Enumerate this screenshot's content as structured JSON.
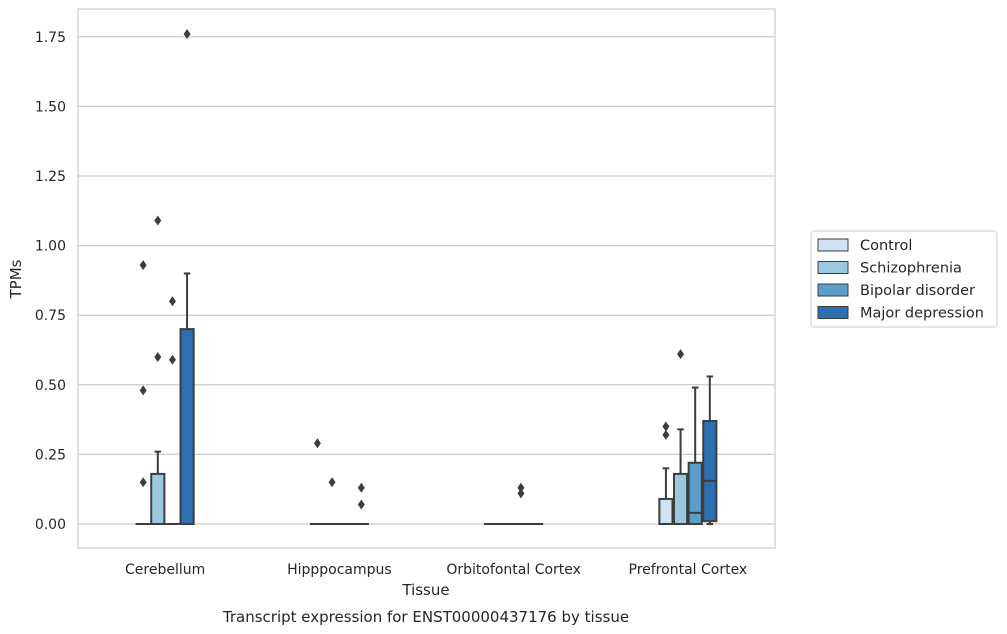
{
  "chart_data": {
    "type": "box",
    "title": "Transcript expression for ENST00000437176 by tissue",
    "xlabel": "Tissue",
    "ylabel": "TPMs",
    "ylim": [
      -0.085,
      1.85
    ],
    "yticks": [
      0.0,
      0.25,
      0.5,
      0.75,
      1.0,
      1.25,
      1.5,
      1.75
    ],
    "ytick_labels": [
      "0.00",
      "0.25",
      "0.50",
      "0.75",
      "1.00",
      "1.25",
      "1.50",
      "1.75"
    ],
    "grid": "horizontal",
    "legend_position": "right",
    "categories": [
      "Cerebellum",
      "Hipppocampus",
      "Orbitofontal Cortex",
      "Prefrontal Cortex"
    ],
    "series": [
      {
        "name": "Control",
        "color": "#d0e1f2",
        "boxes": [
          {
            "q1": 0,
            "median": 0,
            "q3": 0,
            "whisker_low": 0,
            "whisker_high": 0,
            "outliers": [
              0.93,
              0.48,
              0.15
            ]
          },
          {
            "q1": 0,
            "median": 0,
            "q3": 0,
            "whisker_low": 0,
            "whisker_high": 0,
            "outliers": [
              0.29
            ]
          },
          {
            "q1": 0,
            "median": 0,
            "q3": 0,
            "whisker_low": 0,
            "whisker_high": 0,
            "outliers": []
          },
          {
            "q1": 0,
            "median": 0,
            "q3": 0.09,
            "whisker_low": 0,
            "whisker_high": 0.2,
            "outliers": [
              0.35,
              0.32
            ]
          }
        ]
      },
      {
        "name": "Schizophrenia",
        "color": "#9ac8e0",
        "boxes": [
          {
            "q1": 0,
            "median": 0,
            "q3": 0.18,
            "whisker_low": 0,
            "whisker_high": 0.26,
            "outliers": [
              1.09,
              0.6
            ]
          },
          {
            "q1": 0,
            "median": 0,
            "q3": 0,
            "whisker_low": 0,
            "whisker_high": 0,
            "outliers": [
              0.15
            ]
          },
          {
            "q1": 0,
            "median": 0,
            "q3": 0,
            "whisker_low": 0,
            "whisker_high": 0,
            "outliers": []
          },
          {
            "q1": 0,
            "median": 0,
            "q3": 0.18,
            "whisker_low": 0,
            "whisker_high": 0.34,
            "outliers": [
              0.61
            ]
          }
        ]
      },
      {
        "name": "Bipolar disorder",
        "color": "#5b9ec9",
        "boxes": [
          {
            "q1": 0,
            "median": 0,
            "q3": 0,
            "whisker_low": 0,
            "whisker_high": 0,
            "outliers": [
              0.8,
              0.59
            ]
          },
          {
            "q1": 0,
            "median": 0,
            "q3": 0,
            "whisker_low": 0,
            "whisker_high": 0,
            "outliers": []
          },
          {
            "q1": 0,
            "median": 0,
            "q3": 0,
            "whisker_low": 0,
            "whisker_high": 0,
            "outliers": [
              0.13,
              0.11
            ]
          },
          {
            "q1": 0,
            "median": 0.04,
            "q3": 0.22,
            "whisker_low": 0,
            "whisker_high": 0.49,
            "outliers": []
          }
        ]
      },
      {
        "name": "Major depression",
        "color": "#2d6fb0",
        "boxes": [
          {
            "q1": 0,
            "median": 0,
            "q3": 0.7,
            "whisker_low": 0,
            "whisker_high": 0.9,
            "outliers": [
              1.76
            ]
          },
          {
            "q1": 0,
            "median": 0,
            "q3": 0,
            "whisker_low": 0,
            "whisker_high": 0,
            "outliers": [
              0.13,
              0.07
            ]
          },
          {
            "q1": 0,
            "median": 0,
            "q3": 0,
            "whisker_low": 0,
            "whisker_high": 0,
            "outliers": []
          },
          {
            "q1": 0.01,
            "median": 0.155,
            "q3": 0.37,
            "whisker_low": 0,
            "whisker_high": 0.53,
            "outliers": []
          }
        ]
      }
    ]
  }
}
